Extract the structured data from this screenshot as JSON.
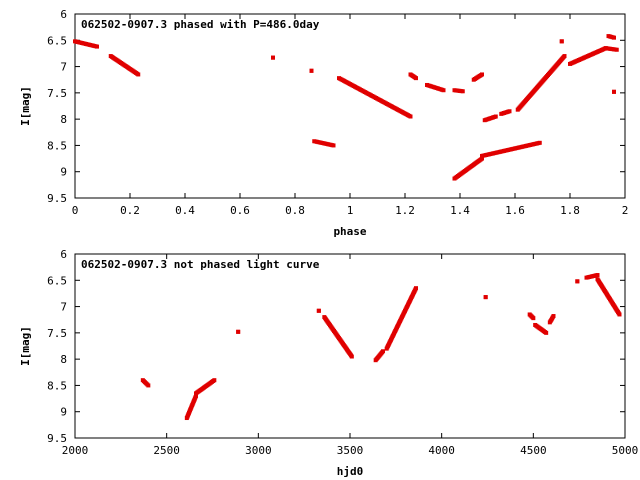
{
  "colors": {
    "points": "#e00000",
    "axes": "#000000",
    "background": "#ffffff"
  },
  "chart_data": [
    {
      "type": "scatter",
      "title": "062502-0907.3 phased with P=486.0day",
      "xlabel": "phase",
      "ylabel": "I[mag]",
      "xlim": [
        0,
        2
      ],
      "ylim": [
        6,
        9.5
      ],
      "y_inverted": true,
      "grid": false,
      "xticks": [
        "0",
        "0.2",
        "0.4",
        "0.6",
        "0.8",
        "1",
        "1.2",
        "1.4",
        "1.6",
        "1.8",
        "2"
      ],
      "yticks": [
        "6",
        "6.5",
        "7",
        "7.5",
        "8",
        "8.5",
        "9",
        "9.5"
      ],
      "segments": [
        {
          "x": [
            0.0,
            0.08
          ],
          "y": [
            6.52,
            6.62
          ]
        },
        {
          "x": [
            0.13,
            0.23
          ],
          "y": [
            6.8,
            7.15
          ]
        },
        {
          "x": [
            0.72,
            0.72
          ],
          "y": [
            6.83,
            6.83
          ]
        },
        {
          "x": [
            0.86,
            0.86
          ],
          "y": [
            7.08,
            7.08
          ]
        },
        {
          "x": [
            0.87,
            0.94
          ],
          "y": [
            8.42,
            8.5
          ]
        },
        {
          "x": [
            0.96,
            1.22
          ],
          "y": [
            7.22,
            7.95
          ]
        },
        {
          "x": [
            1.22,
            1.24
          ],
          "y": [
            7.15,
            7.22
          ]
        },
        {
          "x": [
            1.28,
            1.34
          ],
          "y": [
            7.35,
            7.45
          ]
        },
        {
          "x": [
            1.38,
            1.41
          ],
          "y": [
            7.45,
            7.47
          ]
        },
        {
          "x": [
            1.38,
            1.48
          ],
          "y": [
            9.13,
            8.75
          ]
        },
        {
          "x": [
            1.48,
            1.69
          ],
          "y": [
            8.7,
            8.45
          ]
        },
        {
          "x": [
            1.45,
            1.48
          ],
          "y": [
            7.25,
            7.15
          ]
        },
        {
          "x": [
            1.49,
            1.53
          ],
          "y": [
            8.02,
            7.95
          ]
        },
        {
          "x": [
            1.55,
            1.58
          ],
          "y": [
            7.9,
            7.85
          ]
        },
        {
          "x": [
            1.61,
            1.78
          ],
          "y": [
            7.82,
            6.8
          ]
        },
        {
          "x": [
            1.77,
            1.77
          ],
          "y": [
            6.52,
            6.52
          ]
        },
        {
          "x": [
            1.8,
            1.93
          ],
          "y": [
            6.95,
            6.65
          ]
        },
        {
          "x": [
            1.94,
            1.96
          ],
          "y": [
            6.42,
            6.45
          ]
        },
        {
          "x": [
            1.93,
            1.97
          ],
          "y": [
            6.65,
            6.68
          ]
        },
        {
          "x": [
            1.96,
            1.96
          ],
          "y": [
            7.48,
            7.48
          ]
        }
      ]
    },
    {
      "type": "scatter",
      "title": "062502-0907.3 not phased light curve",
      "xlabel": "hjd0",
      "ylabel": "I[mag]",
      "xlim": [
        2000,
        5000
      ],
      "ylim": [
        6,
        9.5
      ],
      "y_inverted": true,
      "grid": false,
      "xticks": [
        "2000",
        "2500",
        "3000",
        "3500",
        "4000",
        "4500",
        "5000"
      ],
      "yticks": [
        "6",
        "6.5",
        "7",
        "7.5",
        "8",
        "8.5",
        "9",
        "9.5"
      ],
      "segments": [
        {
          "x": [
            2370,
            2400
          ],
          "y": [
            8.4,
            8.5
          ]
        },
        {
          "x": [
            2610,
            2660
          ],
          "y": [
            9.12,
            8.7
          ]
        },
        {
          "x": [
            2660,
            2760
          ],
          "y": [
            8.65,
            8.4
          ]
        },
        {
          "x": [
            2890,
            2890
          ],
          "y": [
            7.48,
            7.48
          ]
        },
        {
          "x": [
            3330,
            3330
          ],
          "y": [
            7.08,
            7.08
          ]
        },
        {
          "x": [
            3360,
            3510
          ],
          "y": [
            7.2,
            7.95
          ]
        },
        {
          "x": [
            3640,
            3680
          ],
          "y": [
            8.02,
            7.85
          ]
        },
        {
          "x": [
            3700,
            3860
          ],
          "y": [
            7.8,
            6.65
          ]
        },
        {
          "x": [
            4240,
            4240
          ],
          "y": [
            6.82,
            6.82
          ]
        },
        {
          "x": [
            4480,
            4500
          ],
          "y": [
            7.15,
            7.22
          ]
        },
        {
          "x": [
            4510,
            4570
          ],
          "y": [
            7.35,
            7.5
          ]
        },
        {
          "x": [
            4590,
            4610
          ],
          "y": [
            7.3,
            7.18
          ]
        },
        {
          "x": [
            4740,
            4740
          ],
          "y": [
            6.52,
            6.52
          ]
        },
        {
          "x": [
            4790,
            4850
          ],
          "y": [
            6.45,
            6.4
          ]
        },
        {
          "x": [
            4850,
            4970
          ],
          "y": [
            6.48,
            7.15
          ]
        }
      ]
    }
  ]
}
